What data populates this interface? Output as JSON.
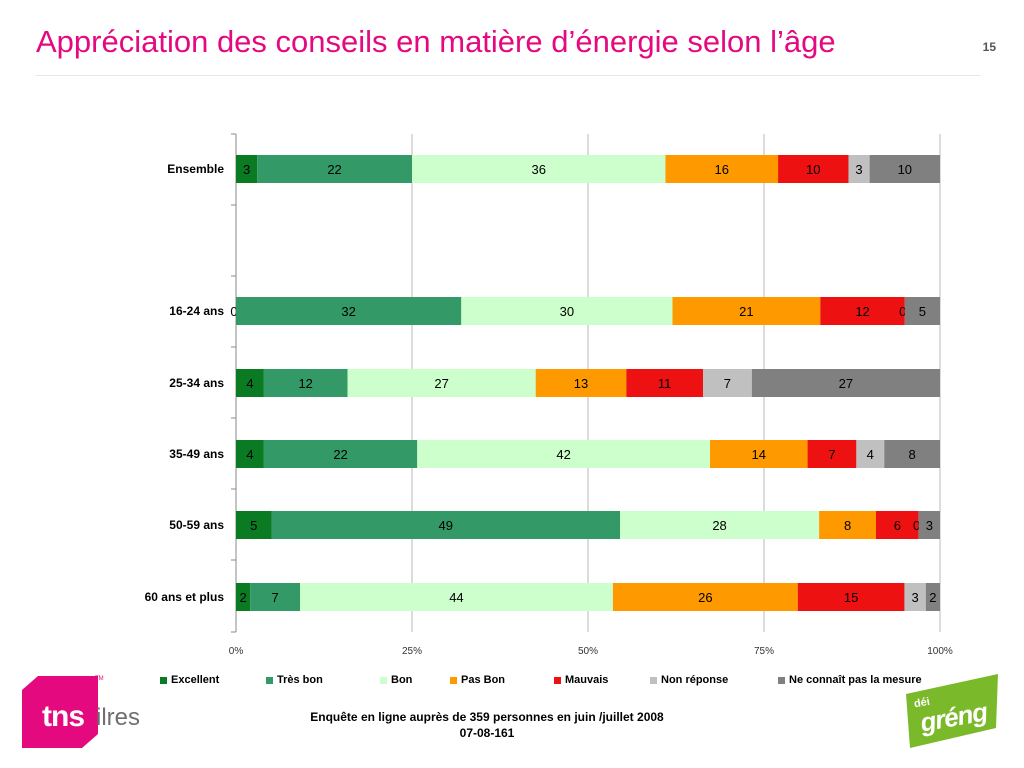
{
  "header": {
    "title": "Appréciation des conseils en matière d’énergie selon l’âge",
    "page_number": "15"
  },
  "chart_data": {
    "type": "bar",
    "orientation": "horizontal",
    "stacked": "percent",
    "categories": [
      "Ensemble",
      "16-24 ans",
      "25-34 ans",
      "35-49 ans",
      "50-59 ans",
      "60 ans et plus"
    ],
    "series": [
      {
        "name": "Excellent",
        "color": "#0a7a23",
        "values": [
          3,
          0,
          4,
          4,
          5,
          2
        ],
        "label_color": "#000000"
      },
      {
        "name": "Très bon",
        "color": "#339966",
        "values": [
          22,
          32,
          12,
          22,
          49,
          7
        ],
        "label_color": "#000000"
      },
      {
        "name": "Bon",
        "color": "#ccffcc",
        "values": [
          36,
          30,
          27,
          42,
          28,
          44
        ],
        "label_color": "#000000"
      },
      {
        "name": "Pas Bon",
        "color": "#ff9900",
        "values": [
          16,
          21,
          13,
          14,
          8,
          26
        ],
        "label_color": "#000000"
      },
      {
        "name": "Mauvais",
        "color": "#ee1111",
        "values": [
          10,
          12,
          11,
          7,
          6,
          15
        ],
        "label_color": "#000000"
      },
      {
        "name": "Non réponse",
        "color": "#c0c0c0",
        "values": [
          3,
          0,
          7,
          4,
          0,
          3
        ],
        "label_color": "#000000"
      },
      {
        "name": "Ne connaît pas la mesure",
        "color": "#808080",
        "values": [
          10,
          5,
          27,
          8,
          3,
          2
        ],
        "label_color": "#000000"
      }
    ],
    "x_ticks": [
      "0%",
      "25%",
      "50%",
      "75%",
      "100%"
    ],
    "xlim": [
      0,
      100
    ],
    "grid": true,
    "legend": "bottom"
  },
  "footer": {
    "line1": "Enquête en ligne auprès de 359 personnes en juin /juillet 2008",
    "line2": "07-08-161"
  },
  "logos": {
    "tns_text": "tns",
    "ilres_text": "ilres",
    "tm": "TM",
    "green_top": "déi",
    "green_main": "gréng",
    "tns_color": "#e5097f",
    "green_color": "#7ab929"
  }
}
